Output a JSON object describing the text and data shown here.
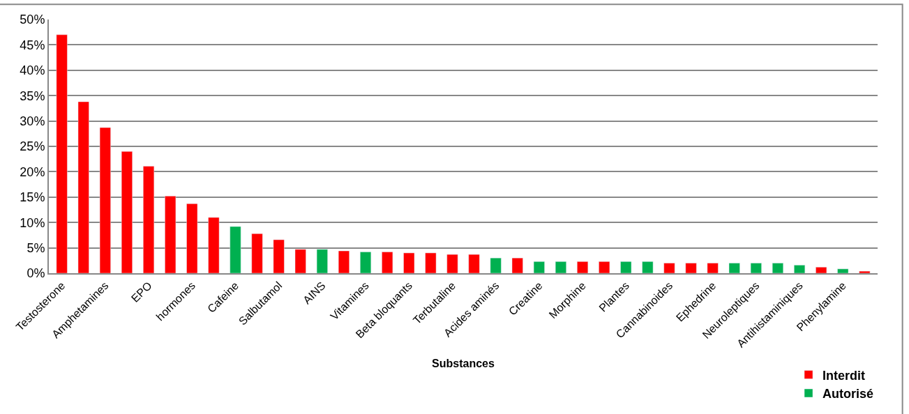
{
  "chart_data": {
    "type": "bar",
    "xlabel": "Substances",
    "categories": [
      "Testosterone",
      null,
      "Amphetamines",
      null,
      "EPO",
      null,
      "hormones",
      null,
      "Cafeine",
      null,
      "Salbutamol",
      null,
      "AINS",
      null,
      "Vitamines",
      null,
      "Beta bloquants",
      null,
      "Terbutaline",
      null,
      "Acides aminés",
      null,
      "Creatine",
      null,
      "Morphine",
      null,
      "Plantes",
      null,
      "Cannabinoides",
      null,
      "Ephedrine",
      null,
      "Neuroleptiques",
      null,
      "Antihistaminiques",
      null,
      "Phenylamine",
      null
    ],
    "series": [
      {
        "name": "Interdit",
        "color": "#ff0000",
        "values": [
          47,
          33.8,
          28.7,
          24,
          21.1,
          15.2,
          13.7,
          11,
          null,
          7.8,
          6.6,
          4.7,
          null,
          4.4,
          null,
          4.2,
          4.0,
          4.0,
          3.7,
          3.7,
          null,
          3.0,
          null,
          null,
          2.3,
          2.3,
          null,
          null,
          2.0,
          2.0,
          2.0,
          null,
          null,
          null,
          null,
          1.2,
          null,
          0.4
        ]
      },
      {
        "name": "Autorisé",
        "color": "#00b050",
        "values": [
          null,
          null,
          null,
          null,
          null,
          null,
          null,
          null,
          9.2,
          null,
          null,
          null,
          4.7,
          null,
          4.2,
          null,
          null,
          null,
          null,
          null,
          3.0,
          null,
          2.3,
          2.3,
          null,
          null,
          2.3,
          2.3,
          null,
          null,
          null,
          2.0,
          2.0,
          2.0,
          1.6,
          null,
          0.85,
          null
        ]
      }
    ],
    "ylim": [
      0,
      50
    ],
    "yticks": [
      {
        "value": 0,
        "label": "0%"
      },
      {
        "value": 5,
        "label": "5%"
      },
      {
        "value": 10,
        "label": "10%"
      },
      {
        "value": 15,
        "label": "15%"
      },
      {
        "value": 20,
        "label": "20%"
      },
      {
        "value": 25,
        "label": "25%"
      },
      {
        "value": 30,
        "label": "30%"
      },
      {
        "value": 35,
        "label": "35%"
      },
      {
        "value": 40,
        "label": "40%"
      },
      {
        "value": 45,
        "label": "45%"
      },
      {
        "value": 50,
        "label": "50%"
      }
    ],
    "grid": "y",
    "legend": "bottom right"
  }
}
